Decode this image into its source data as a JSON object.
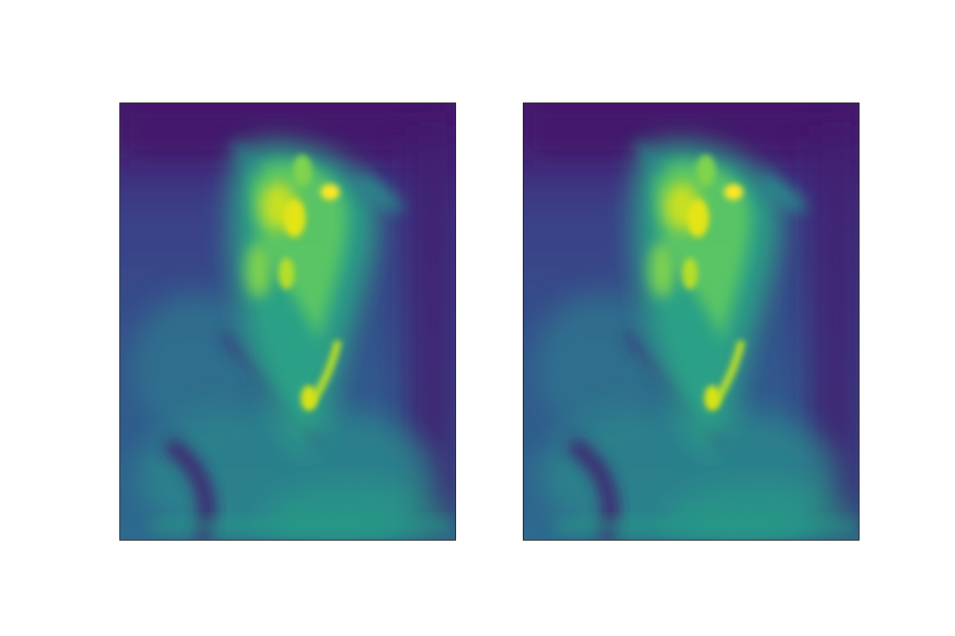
{
  "figure": {
    "colormap": "viridis",
    "colormap_stops": [
      "#440154",
      "#482878",
      "#3e4989",
      "#31688e",
      "#26828e",
      "#1f9e89",
      "#35b779",
      "#6ece58",
      "#b5de2b",
      "#fde725"
    ],
    "background_color": "#ffffff",
    "axes_edge_color": "#111111",
    "ticks_visible": false,
    "panels": [
      {
        "name": "left",
        "kind": "saliency-heatmap"
      },
      {
        "name": "right",
        "kind": "saliency-heatmap"
      }
    ]
  }
}
